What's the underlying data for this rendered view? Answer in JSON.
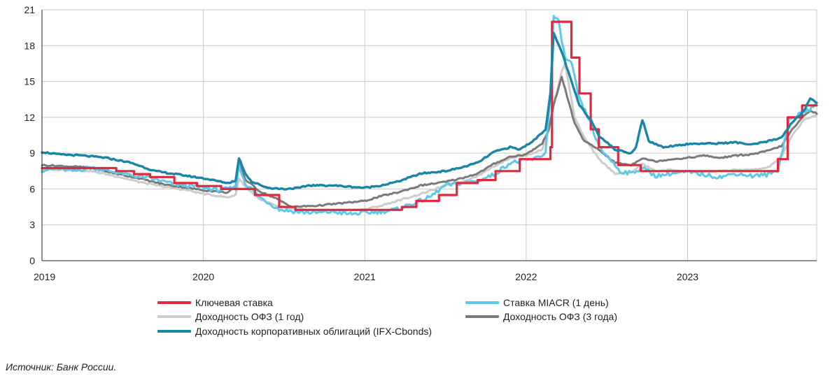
{
  "chart_data": {
    "type": "line",
    "title": "",
    "xlabel": "",
    "ylabel": "",
    "ylim": [
      0,
      21
    ],
    "yticks": [
      0,
      3,
      6,
      9,
      12,
      15,
      18,
      21
    ],
    "xlim": [
      2019.0,
      2023.8
    ],
    "xticks": [
      {
        "value": 2019,
        "label": "2019"
      },
      {
        "value": 2020,
        "label": "2020"
      },
      {
        "value": 2021,
        "label": "2021"
      },
      {
        "value": 2022,
        "label": "2022"
      },
      {
        "value": 2023,
        "label": "2023"
      }
    ],
    "grid": true,
    "series": [
      {
        "name": "Ключевая ставка",
        "color": "#e0283f",
        "step": true,
        "points": [
          [
            2019.0,
            7.75
          ],
          [
            2019.46,
            7.5
          ],
          [
            2019.57,
            7.25
          ],
          [
            2019.67,
            7.0
          ],
          [
            2019.82,
            6.5
          ],
          [
            2019.96,
            6.25
          ],
          [
            2020.11,
            6.0
          ],
          [
            2020.32,
            5.5
          ],
          [
            2020.47,
            4.5
          ],
          [
            2020.57,
            4.25
          ],
          [
            2021.23,
            4.5
          ],
          [
            2021.32,
            5.0
          ],
          [
            2021.46,
            5.5
          ],
          [
            2021.57,
            6.5
          ],
          [
            2021.7,
            6.75
          ],
          [
            2021.81,
            7.5
          ],
          [
            2021.96,
            8.5
          ],
          [
            2022.15,
            9.5
          ],
          [
            2022.16,
            20.0
          ],
          [
            2022.28,
            17.0
          ],
          [
            2022.33,
            14.0
          ],
          [
            2022.4,
            11.0
          ],
          [
            2022.45,
            9.5
          ],
          [
            2022.57,
            8.0
          ],
          [
            2022.71,
            7.5
          ],
          [
            2023.56,
            8.5
          ],
          [
            2023.62,
            12.0
          ],
          [
            2023.71,
            13.0
          ],
          [
            2023.8,
            13.0
          ]
        ]
      },
      {
        "name": "Ставка MIACR (1 день)",
        "color": "#5ec8e8",
        "step": false,
        "points": [
          [
            2019.0,
            7.6
          ],
          [
            2019.1,
            7.7
          ],
          [
            2019.2,
            7.5
          ],
          [
            2019.3,
            7.8
          ],
          [
            2019.46,
            7.4
          ],
          [
            2019.57,
            7.1
          ],
          [
            2019.67,
            6.9
          ],
          [
            2019.82,
            6.4
          ],
          [
            2019.96,
            6.2
          ],
          [
            2020.1,
            5.9
          ],
          [
            2020.2,
            6.1
          ],
          [
            2020.22,
            7.9
          ],
          [
            2020.26,
            6.5
          ],
          [
            2020.35,
            5.3
          ],
          [
            2020.47,
            4.3
          ],
          [
            2020.57,
            4.1
          ],
          [
            2020.7,
            4.0
          ],
          [
            2020.8,
            4.1
          ],
          [
            2020.9,
            3.9
          ],
          [
            2021.0,
            4.0
          ],
          [
            2021.1,
            4.1
          ],
          [
            2021.2,
            4.3
          ],
          [
            2021.3,
            4.8
          ],
          [
            2021.4,
            5.3
          ],
          [
            2021.5,
            6.3
          ],
          [
            2021.6,
            6.5
          ],
          [
            2021.7,
            6.7
          ],
          [
            2021.8,
            7.2
          ],
          [
            2021.9,
            8.2
          ],
          [
            2021.96,
            8.3
          ],
          [
            2022.05,
            8.5
          ],
          [
            2022.12,
            9.0
          ],
          [
            2022.15,
            14.0
          ],
          [
            2022.17,
            20.5
          ],
          [
            2022.2,
            20.0
          ],
          [
            2022.24,
            17.0
          ],
          [
            2022.28,
            16.5
          ],
          [
            2022.33,
            13.5
          ],
          [
            2022.4,
            11.5
          ],
          [
            2022.45,
            9.5
          ],
          [
            2022.52,
            8.5
          ],
          [
            2022.58,
            7.5
          ],
          [
            2022.65,
            7.3
          ],
          [
            2022.72,
            7.8
          ],
          [
            2022.8,
            7.1
          ],
          [
            2022.9,
            7.3
          ],
          [
            2023.0,
            7.4
          ],
          [
            2023.1,
            7.2
          ],
          [
            2023.2,
            7.0
          ],
          [
            2023.3,
            7.3
          ],
          [
            2023.4,
            7.1
          ],
          [
            2023.5,
            7.2
          ],
          [
            2023.56,
            7.6
          ],
          [
            2023.6,
            10.0
          ],
          [
            2023.63,
            11.8
          ],
          [
            2023.7,
            12.3
          ],
          [
            2023.75,
            12.7
          ],
          [
            2023.8,
            13.0
          ]
        ]
      },
      {
        "name": "Доходность ОФЗ (1 год)",
        "color": "#cccccc",
        "step": false,
        "points": [
          [
            2019.0,
            7.6
          ],
          [
            2019.15,
            7.6
          ],
          [
            2019.3,
            7.5
          ],
          [
            2019.45,
            7.1
          ],
          [
            2019.6,
            6.6
          ],
          [
            2019.75,
            6.2
          ],
          [
            2019.9,
            5.9
          ],
          [
            2020.0,
            5.6
          ],
          [
            2020.15,
            5.3
          ],
          [
            2020.2,
            5.5
          ],
          [
            2020.22,
            6.9
          ],
          [
            2020.26,
            6.2
          ],
          [
            2020.35,
            5.1
          ],
          [
            2020.45,
            4.6
          ],
          [
            2020.55,
            4.3
          ],
          [
            2020.7,
            4.2
          ],
          [
            2020.85,
            4.2
          ],
          [
            2021.0,
            4.3
          ],
          [
            2021.1,
            4.6
          ],
          [
            2021.2,
            5.0
          ],
          [
            2021.35,
            5.6
          ],
          [
            2021.5,
            6.3
          ],
          [
            2021.6,
            6.6
          ],
          [
            2021.7,
            7.1
          ],
          [
            2021.8,
            7.9
          ],
          [
            2021.9,
            8.6
          ],
          [
            2022.0,
            8.8
          ],
          [
            2022.1,
            9.3
          ],
          [
            2022.14,
            11.0
          ],
          [
            2022.17,
            13.0
          ],
          [
            2022.22,
            15.8
          ],
          [
            2022.24,
            16.6
          ],
          [
            2022.3,
            12.0
          ],
          [
            2022.36,
            10.3
          ],
          [
            2022.45,
            8.5
          ],
          [
            2022.55,
            7.3
          ],
          [
            2022.65,
            7.4
          ],
          [
            2022.72,
            8.1
          ],
          [
            2022.8,
            7.5
          ],
          [
            2022.9,
            7.6
          ],
          [
            2023.0,
            7.5
          ],
          [
            2023.1,
            7.4
          ],
          [
            2023.2,
            7.5
          ],
          [
            2023.3,
            7.6
          ],
          [
            2023.4,
            7.6
          ],
          [
            2023.5,
            7.8
          ],
          [
            2023.58,
            8.7
          ],
          [
            2023.65,
            10.5
          ],
          [
            2023.72,
            11.8
          ],
          [
            2023.8,
            12.2
          ]
        ]
      },
      {
        "name": "Доходность ОФЗ (3 года)",
        "color": "#7a7a7a",
        "step": false,
        "points": [
          [
            2019.0,
            8.0
          ],
          [
            2019.15,
            7.9
          ],
          [
            2019.3,
            7.8
          ],
          [
            2019.45,
            7.3
          ],
          [
            2019.6,
            6.9
          ],
          [
            2019.75,
            6.4
          ],
          [
            2019.9,
            6.1
          ],
          [
            2020.0,
            5.9
          ],
          [
            2020.15,
            5.7
          ],
          [
            2020.2,
            6.2
          ],
          [
            2020.22,
            8.2
          ],
          [
            2020.26,
            6.8
          ],
          [
            2020.35,
            5.8
          ],
          [
            2020.45,
            5.2
          ],
          [
            2020.55,
            4.5
          ],
          [
            2020.7,
            4.6
          ],
          [
            2020.85,
            4.8
          ],
          [
            2021.0,
            5.0
          ],
          [
            2021.1,
            5.4
          ],
          [
            2021.2,
            5.7
          ],
          [
            2021.35,
            6.3
          ],
          [
            2021.5,
            6.6
          ],
          [
            2021.6,
            6.9
          ],
          [
            2021.7,
            7.3
          ],
          [
            2021.8,
            8.1
          ],
          [
            2021.9,
            8.7
          ],
          [
            2022.0,
            8.9
          ],
          [
            2022.1,
            9.8
          ],
          [
            2022.14,
            11.0
          ],
          [
            2022.17,
            13.0
          ],
          [
            2022.22,
            15.4
          ],
          [
            2022.3,
            11.5
          ],
          [
            2022.36,
            10.0
          ],
          [
            2022.45,
            9.3
          ],
          [
            2022.55,
            8.2
          ],
          [
            2022.65,
            8.0
          ],
          [
            2022.72,
            8.6
          ],
          [
            2022.8,
            8.3
          ],
          [
            2022.9,
            8.5
          ],
          [
            2023.0,
            8.6
          ],
          [
            2023.1,
            8.8
          ],
          [
            2023.2,
            8.6
          ],
          [
            2023.3,
            8.8
          ],
          [
            2023.4,
            8.9
          ],
          [
            2023.5,
            9.2
          ],
          [
            2023.58,
            9.6
          ],
          [
            2023.65,
            11.0
          ],
          [
            2023.72,
            12.1
          ],
          [
            2023.76,
            12.6
          ],
          [
            2023.8,
            12.3
          ]
        ]
      },
      {
        "name": "Доходность корпоративных облигаций (IFX-Cbonds)",
        "color": "#1b85a8",
        "step": false,
        "points": [
          [
            2019.0,
            9.1
          ],
          [
            2019.1,
            8.9
          ],
          [
            2019.25,
            8.8
          ],
          [
            2019.4,
            8.6
          ],
          [
            2019.55,
            8.2
          ],
          [
            2019.7,
            7.5
          ],
          [
            2019.85,
            7.2
          ],
          [
            2020.0,
            6.9
          ],
          [
            2020.15,
            6.5
          ],
          [
            2020.2,
            6.7
          ],
          [
            2020.22,
            8.6
          ],
          [
            2020.26,
            7.3
          ],
          [
            2020.3,
            6.6
          ],
          [
            2020.4,
            6.1
          ],
          [
            2020.5,
            6.0
          ],
          [
            2020.6,
            6.1
          ],
          [
            2020.65,
            6.3
          ],
          [
            2020.8,
            6.3
          ],
          [
            2020.9,
            6.2
          ],
          [
            2021.0,
            6.1
          ],
          [
            2021.1,
            6.3
          ],
          [
            2021.2,
            6.6
          ],
          [
            2021.35,
            7.3
          ],
          [
            2021.5,
            7.5
          ],
          [
            2021.6,
            7.8
          ],
          [
            2021.7,
            8.2
          ],
          [
            2021.8,
            9.1
          ],
          [
            2021.9,
            9.5
          ],
          [
            2021.96,
            9.3
          ],
          [
            2022.05,
            10.1
          ],
          [
            2022.12,
            11.0
          ],
          [
            2022.15,
            14.0
          ],
          [
            2022.17,
            19.0
          ],
          [
            2022.22,
            17.5
          ],
          [
            2022.28,
            15.0
          ],
          [
            2022.33,
            13.0
          ],
          [
            2022.4,
            11.8
          ],
          [
            2022.45,
            10.5
          ],
          [
            2022.55,
            9.3
          ],
          [
            2022.65,
            9.0
          ],
          [
            2022.68,
            9.5
          ],
          [
            2022.72,
            11.8
          ],
          [
            2022.76,
            10.0
          ],
          [
            2022.85,
            9.5
          ],
          [
            2022.95,
            9.7
          ],
          [
            2023.05,
            9.8
          ],
          [
            2023.15,
            9.8
          ],
          [
            2023.3,
            9.9
          ],
          [
            2023.4,
            9.7
          ],
          [
            2023.5,
            10.0
          ],
          [
            2023.58,
            10.3
          ],
          [
            2023.65,
            11.6
          ],
          [
            2023.72,
            12.5
          ],
          [
            2023.76,
            13.6
          ],
          [
            2023.8,
            13.2
          ]
        ]
      }
    ]
  },
  "legend": {
    "items": [
      {
        "label": "Ключевая ставка",
        "color": "#e0283f"
      },
      {
        "label": "Ставка MIACR (1 день)",
        "color": "#5ec8e8"
      },
      {
        "label": "Доходность ОФЗ (1 год)",
        "color": "#cccccc"
      },
      {
        "label": "Доходность ОФЗ (3 года)",
        "color": "#7a7a7a"
      },
      {
        "label": "Доходность корпоративных облигаций (IFX-Cbonds)",
        "color": "#1b85a8"
      }
    ]
  },
  "source": "Источник: Банк России."
}
